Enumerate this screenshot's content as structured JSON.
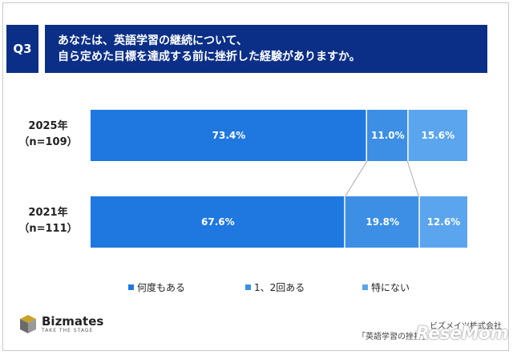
{
  "question": {
    "badge": "Q3",
    "line1": "あなたは、英語学習の継続について、",
    "line2": "自ら定めた目標を達成する前に挫折した経験がありますか。"
  },
  "chart_data": {
    "type": "bar",
    "orientation": "horizontal",
    "stacked": true,
    "unit": "%",
    "categories": [
      {
        "year": "2025年",
        "n": "（n=109）"
      },
      {
        "year": "2021年",
        "n": "（n=111）"
      }
    ],
    "series": [
      {
        "name": "何度もある",
        "values": [
          73.4,
          67.6
        ],
        "labels": [
          "73.4%",
          "67.6%"
        ],
        "color": "#1f77e0"
      },
      {
        "name": "1、2回ある",
        "values": [
          11.0,
          19.8
        ],
        "labels": [
          "11.0%",
          "19.8%"
        ],
        "color": "#3d8fe6"
      },
      {
        "name": "特にない",
        "values": [
          15.6,
          12.6
        ],
        "labels": [
          "15.6%",
          "12.6%"
        ],
        "color": "#5aa5ee"
      }
    ],
    "xlim": [
      0,
      100
    ],
    "legend_position": "bottom",
    "connector_lines": true
  },
  "brand": {
    "name": "Bizmates",
    "tagline": "TAKE THE STAGE"
  },
  "footer": {
    "company": "ビズメイツ株式会社",
    "survey": "「英語学習の挫折」",
    "watermark": "ReseMom"
  }
}
